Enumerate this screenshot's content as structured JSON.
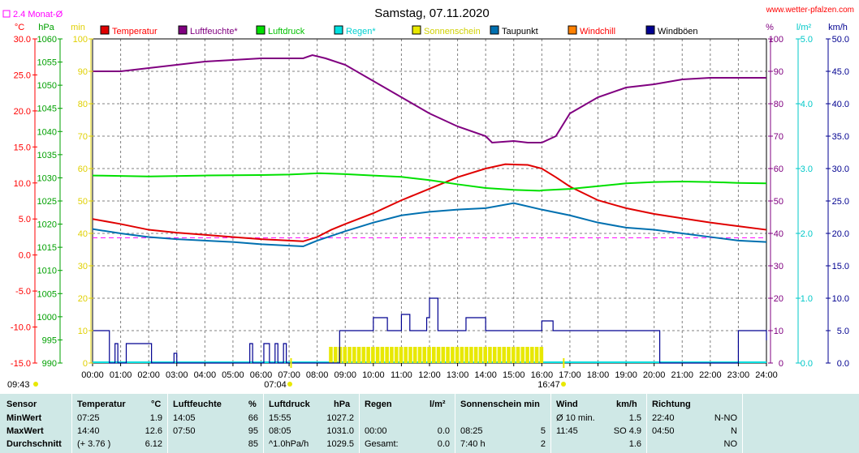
{
  "header": {
    "title": "Samstag, 07.11.2020",
    "site": "www.wetter-pfalzen.com",
    "avg_note": "2.4 Monat-Ø",
    "time_left": "09:43"
  },
  "colors": {
    "temperature": "#e00000",
    "humidity": "#800080",
    "pressure": "#00e000",
    "rain": "#00e0e0",
    "sunshine": "#e8e800",
    "dewpoint": "#0070b0",
    "windchill": "#ff8000",
    "gusts": "#000090",
    "avg_line": "#ff00ff",
    "table_bg": "#cfe8e6"
  },
  "chart_data": {
    "type": "line",
    "x_unit": "time of day (hours)",
    "x_ticks": [
      "00:00",
      "01:00",
      "02:00",
      "03:00",
      "04:00",
      "05:00",
      "06:00",
      "07:00",
      "08:00",
      "09:00",
      "10:00",
      "11:00",
      "12:00",
      "13:00",
      "14:00",
      "15:00",
      "16:00",
      "17:00",
      "18:00",
      "19:00",
      "20:00",
      "21:00",
      "22:00",
      "23:00",
      "24:00"
    ],
    "xlim": [
      0,
      24
    ],
    "sunrise_label": "07:04",
    "sunset_label": "16:47",
    "sunrise_hour": 7.07,
    "sunset_hour": 16.78,
    "axes": {
      "temp": {
        "unit": "°C",
        "ylim": [
          -15,
          30
        ],
        "ticks": [
          "30.0",
          "25.0",
          "20.0",
          "15.0",
          "10.0",
          "5.0",
          "0.0",
          "-5.0",
          "-10.0",
          "-15.0"
        ]
      },
      "pressure": {
        "unit": "hPa",
        "ylim": [
          990,
          1060
        ],
        "ticks": [
          "1060",
          "1055",
          "1050",
          "1045",
          "1040",
          "1035",
          "1030",
          "1025",
          "1020",
          "1015",
          "1010",
          "1005",
          "1000",
          "995",
          "990"
        ]
      },
      "sun_minutes": {
        "unit": "min",
        "ylim": [
          0,
          100
        ],
        "ticks": [
          "100",
          "90",
          "80",
          "70",
          "60",
          "50",
          "40",
          "30",
          "20",
          "10",
          "0"
        ]
      },
      "humidity": {
        "unit": "%",
        "ylim": [
          0,
          100
        ],
        "ticks": [
          "100",
          "90",
          "80",
          "70",
          "60",
          "50",
          "40",
          "30",
          "20",
          "10",
          "0"
        ]
      },
      "rain": {
        "unit": "l/m²",
        "ylim": [
          0,
          5
        ],
        "ticks": [
          "5.0",
          "4.0",
          "3.0",
          "2.0",
          "1.0",
          "0.0"
        ]
      },
      "wind": {
        "unit": "km/h",
        "ylim": [
          0,
          50
        ],
        "ticks": [
          "50.0",
          "45.0",
          "40.0",
          "35.0",
          "30.0",
          "25.0",
          "20.0",
          "15.0",
          "10.0",
          "5.0",
          "0.0"
        ]
      }
    },
    "legend": [
      "Temperatur",
      "Luftfeuchte*",
      "Luftdruck",
      "Regen*",
      "Sonnenschein",
      "Taupunkt",
      "Windchill",
      "Windböen"
    ],
    "legend_position": "top",
    "grid": true,
    "avg_temperature": 2.4,
    "series": [
      {
        "name": "Temperatur",
        "axis": "temp",
        "x": [
          0,
          1,
          2,
          3,
          4,
          5,
          6,
          7,
          7.5,
          8,
          8.5,
          9,
          10,
          11,
          12,
          13,
          14,
          14.7,
          15.5,
          16,
          16.5,
          17,
          18,
          19,
          20,
          21,
          22,
          23,
          24
        ],
        "y": [
          5.0,
          4.3,
          3.5,
          3.1,
          2.8,
          2.5,
          2.2,
          2.0,
          1.9,
          2.5,
          3.5,
          4.3,
          5.8,
          7.6,
          9.2,
          10.8,
          12.0,
          12.6,
          12.5,
          12.0,
          10.8,
          9.5,
          7.6,
          6.5,
          5.7,
          5.1,
          4.5,
          4.0,
          3.5
        ]
      },
      {
        "name": "Luftfeuchte*",
        "axis": "humidity",
        "x": [
          0,
          1,
          2,
          3,
          4,
          5,
          6,
          7,
          7.5,
          7.83,
          8.3,
          9,
          10,
          11,
          12,
          13,
          14,
          14.23,
          15,
          15.5,
          16,
          16.5,
          17,
          18,
          19,
          20,
          21,
          22,
          23,
          24
        ],
        "y": [
          90,
          90,
          91,
          92,
          93,
          93.5,
          94,
          94,
          94,
          95,
          94,
          92,
          87,
          82,
          77,
          73,
          70,
          68,
          68.5,
          68,
          68,
          70,
          77,
          82,
          85,
          86,
          87.5,
          88,
          88,
          88
        ]
      },
      {
        "name": "Luftdruck",
        "axis": "pressure",
        "x": [
          0,
          2,
          4,
          6,
          7,
          8.08,
          9,
          10,
          11,
          12,
          13,
          14,
          15,
          15.92,
          16,
          17,
          18,
          19,
          20,
          21,
          22,
          23,
          24
        ],
        "y": [
          1030.5,
          1030.3,
          1030.5,
          1030.6,
          1030.7,
          1031.0,
          1030.8,
          1030.5,
          1030.2,
          1029.5,
          1028.6,
          1027.8,
          1027.4,
          1027.2,
          1027.3,
          1027.6,
          1028.2,
          1028.8,
          1029.1,
          1029.2,
          1029.1,
          1028.9,
          1028.8
        ]
      },
      {
        "name": "Taupunkt",
        "axis": "temp",
        "x": [
          0,
          1,
          2,
          3,
          4,
          5,
          6,
          7,
          7.5,
          8,
          9,
          10,
          11,
          12,
          13,
          14,
          15,
          16,
          17,
          18,
          19,
          20,
          21,
          22,
          23,
          24
        ],
        "y": [
          3.6,
          3.0,
          2.5,
          2.2,
          2.0,
          1.8,
          1.5,
          1.3,
          1.2,
          2.0,
          3.3,
          4.5,
          5.5,
          6.0,
          6.3,
          6.5,
          7.2,
          6.3,
          5.5,
          4.5,
          3.8,
          3.5,
          3.0,
          2.5,
          2.0,
          1.8
        ]
      },
      {
        "name": "Windböen",
        "axis": "wind",
        "x": [
          0,
          0.3,
          0.5,
          0.6,
          0.7,
          0.8,
          0.9,
          1.0,
          1.2,
          1.4,
          1.6,
          2.0,
          2.1,
          2.2,
          2.3,
          2.5,
          2.8,
          2.9,
          3.0,
          5.0,
          5.2,
          5.6,
          5.7,
          6.0,
          6.1,
          6.3,
          6.5,
          6.6,
          6.8,
          6.9,
          7.0,
          8.7,
          8.8,
          9.0,
          9.2,
          9.4,
          10.0,
          10.5,
          10.8,
          11.0,
          11.3,
          11.5,
          11.7,
          11.9,
          12.0,
          12.3,
          12.5,
          12.8,
          13.0,
          13.3,
          13.6,
          14.0,
          14.5,
          15.0,
          15.3,
          15.6,
          16.0,
          16.4,
          17.0,
          17.5,
          18.0,
          18.5,
          19.0,
          19.5,
          20.0,
          20.2,
          21.0,
          22.0,
          22.3,
          23.0,
          23.5,
          24.0
        ],
        "y": [
          5,
          5,
          5,
          0,
          0,
          3,
          0,
          0,
          3,
          3,
          3,
          3,
          0,
          0,
          0,
          0,
          0,
          1.5,
          0,
          0,
          0,
          3,
          0,
          0,
          3,
          0,
          3,
          0,
          3,
          0,
          0,
          0,
          5,
          5,
          5,
          5,
          7,
          5,
          5,
          7.5,
          5,
          5,
          5,
          7,
          10,
          5,
          5,
          5,
          5,
          7,
          7,
          5,
          5,
          5,
          5,
          5,
          6.5,
          5,
          5,
          5,
          5,
          5,
          5,
          5,
          5,
          0,
          0,
          0,
          0,
          5,
          5,
          3.5
        ]
      },
      {
        "name": "Sonnenschein",
        "axis": "sun_minutes",
        "x": [
          8.42,
          16.0
        ],
        "y": [
          5,
          5
        ]
      }
    ]
  },
  "stats": {
    "headers": {
      "sensor": "Sensor",
      "temp": "Temperatur",
      "temp_unit": "°C",
      "hum": "Luftfeuchte",
      "hum_unit": "%",
      "pres": "Luftdruck",
      "pres_unit": "hPa",
      "rain": "Regen",
      "rain_unit": "l/m²",
      "sun": "Sonnenschein min",
      "wind": "Wind",
      "wind_unit": "km/h",
      "dir": "Richtung"
    },
    "rows": [
      {
        "label": "MinWert",
        "temp_time": "07:25",
        "temp_val": "1.9",
        "hum_time": "14:05",
        "hum_val": "66",
        "pres_time": "15:55",
        "pres_val": "1027.2",
        "rain_time": "",
        "rain_val": "",
        "sun_time": "",
        "sun_val": "",
        "wind_time": "Ø 10 min.",
        "wind_val": "1.5",
        "dir_time": "22:40",
        "dir_val": "N-NO"
      },
      {
        "label": "MaxWert",
        "temp_time": "14:40",
        "temp_val": "12.6",
        "hum_time": "07:50",
        "hum_val": "95",
        "pres_time": "08:05",
        "pres_val": "1031.0",
        "rain_time": "00:00",
        "rain_val": "0.0",
        "sun_time": "08:25",
        "sun_val": "5",
        "wind_time": "11:45",
        "wind_val": "SO 4.9",
        "dir_time": "04:50",
        "dir_val": "N"
      },
      {
        "label": "Durchschnitt",
        "temp_time": "(+ 3.76 )",
        "temp_val": "6.12",
        "hum_time": "",
        "hum_val": "85",
        "pres_time": "^1.0hPa/h",
        "pres_val": "1029.5",
        "rain_time": "Gesamt:",
        "rain_val": "0.0",
        "sun_time": "7:40 h",
        "sun_val": "2",
        "wind_time": "",
        "wind_val": "1.6",
        "dir_time": "",
        "dir_val": "NO"
      }
    ]
  }
}
